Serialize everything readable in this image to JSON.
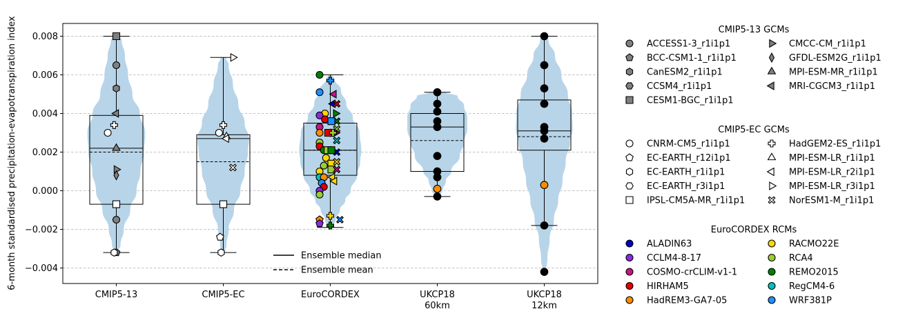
{
  "chart_data": {
    "type": "violin",
    "ylabel": "6-month standardised precipitation-evapotranspiration index",
    "ylim": [
      -0.0048,
      0.0086
    ],
    "yticks": [
      -0.004,
      -0.002,
      0.0,
      0.002,
      0.004,
      0.006,
      0.008
    ],
    "ytick_labels": [
      "−0.004",
      "−0.002",
      "0.000",
      "0.002",
      "0.004",
      "0.006",
      "0.008"
    ],
    "grid": "horizontal dashed",
    "violin_color": "#b8d4e8",
    "groups": [
      {
        "label": "CMIP5-13",
        "label2": "",
        "box": {
          "q1": -0.0007,
          "median": 0.0022,
          "q3": 0.0039,
          "mean": 0.002,
          "whisker_low": -0.0032,
          "whisker_high": 0.008
        },
        "violin": [
          [
            -0.0032,
            0.02
          ],
          [
            -0.0028,
            0.08
          ],
          [
            -0.002,
            0.14
          ],
          [
            -0.001,
            0.26
          ],
          [
            0.0,
            0.38
          ],
          [
            0.001,
            0.45
          ],
          [
            0.002,
            0.52
          ],
          [
            0.003,
            0.54
          ],
          [
            0.004,
            0.44
          ],
          [
            0.005,
            0.3
          ],
          [
            0.006,
            0.22
          ],
          [
            0.007,
            0.16
          ],
          [
            0.0078,
            0.1
          ],
          [
            0.008,
            0.05
          ]
        ]
      },
      {
        "label": "CMIP5-EC",
        "label2": "",
        "box": {
          "q1": -0.0007,
          "median": 0.0027,
          "q3": 0.0029,
          "mean": 0.0015,
          "whisker_low": -0.0032,
          "whisker_high": 0.0069
        },
        "violin": [
          [
            -0.0032,
            0.03
          ],
          [
            -0.0028,
            0.06
          ],
          [
            -0.002,
            0.1
          ],
          [
            -0.001,
            0.2
          ],
          [
            0.0,
            0.32
          ],
          [
            0.001,
            0.4
          ],
          [
            0.002,
            0.46
          ],
          [
            0.0027,
            0.48
          ],
          [
            0.0035,
            0.4
          ],
          [
            0.0045,
            0.28
          ],
          [
            0.0055,
            0.18
          ],
          [
            0.0065,
            0.1
          ],
          [
            0.0069,
            0.05
          ]
        ]
      },
      {
        "label": "EuroCORDEX",
        "label2": "",
        "box": {
          "q1": 0.0008,
          "median": 0.0021,
          "q3": 0.0035,
          "mean": 0.0021,
          "whisker_low": -0.0019,
          "whisker_high": 0.006
        },
        "violin": [
          [
            -0.0019,
            0.03
          ],
          [
            -0.0015,
            0.1
          ],
          [
            -0.001,
            0.18
          ],
          [
            -0.0005,
            0.28
          ],
          [
            0.0,
            0.38
          ],
          [
            0.0008,
            0.5
          ],
          [
            0.0015,
            0.56
          ],
          [
            0.0021,
            0.58
          ],
          [
            0.003,
            0.55
          ],
          [
            0.0038,
            0.42
          ],
          [
            0.0045,
            0.3
          ],
          [
            0.0052,
            0.2
          ],
          [
            0.0058,
            0.08
          ],
          [
            0.006,
            0.03
          ]
        ]
      },
      {
        "label": "UKCP18",
        "label2": "60km",
        "box": {
          "q1": 0.001,
          "median": 0.0033,
          "q3": 0.004,
          "mean": 0.0026,
          "whisker_low": -0.0003,
          "whisker_high": 0.0051
        },
        "violin": [
          [
            -0.0003,
            0.03
          ],
          [
            0.0,
            0.1
          ],
          [
            0.0005,
            0.16
          ],
          [
            0.001,
            0.26
          ],
          [
            0.0018,
            0.42
          ],
          [
            0.0025,
            0.5
          ],
          [
            0.0032,
            0.56
          ],
          [
            0.0038,
            0.56
          ],
          [
            0.0044,
            0.5
          ],
          [
            0.0049,
            0.38
          ],
          [
            0.0051,
            0.15
          ]
        ]
      },
      {
        "label": "UKCP18",
        "label2": "12km",
        "box": {
          "q1": 0.0021,
          "median": 0.0031,
          "q3": 0.0047,
          "mean": 0.0028,
          "whisker_low": -0.0018,
          "whisker_high": 0.008
        },
        "violin": [
          [
            -0.0042,
            0.03
          ],
          [
            -0.0035,
            0.06
          ],
          [
            -0.0025,
            0.1
          ],
          [
            -0.0015,
            0.18
          ],
          [
            -0.0005,
            0.26
          ],
          [
            0.0005,
            0.34
          ],
          [
            0.0015,
            0.4
          ],
          [
            0.0025,
            0.48
          ],
          [
            0.0032,
            0.53
          ],
          [
            0.004,
            0.52
          ],
          [
            0.005,
            0.44
          ],
          [
            0.006,
            0.32
          ],
          [
            0.007,
            0.2
          ],
          [
            0.0078,
            0.08
          ],
          [
            0.008,
            0.04
          ]
        ]
      }
    ],
    "points": [
      {
        "g": 0,
        "dx": 0,
        "y": 0.008,
        "m": "s",
        "c": "#808080"
      },
      {
        "g": 0,
        "dx": 0,
        "y": 0.0065,
        "m": "o",
        "c": "#808080"
      },
      {
        "g": 0,
        "dx": 0,
        "y": 0.0053,
        "m": "h",
        "c": "#808080"
      },
      {
        "g": 0,
        "dx": 0,
        "y": 0.004,
        "m": "<",
        "c": "#808080"
      },
      {
        "g": 0,
        "dx": 0,
        "y": 0.0022,
        "m": "^",
        "c": "#808080"
      },
      {
        "g": 0,
        "dx": 0,
        "y": 0.0011,
        "m": ">",
        "c": "#808080"
      },
      {
        "g": 0,
        "dx": 0,
        "y": 0.0008,
        "m": "d",
        "c": "#808080"
      },
      {
        "g": 0,
        "dx": 0,
        "y": -0.0015,
        "m": "o",
        "c": "#808080"
      },
      {
        "g": 0,
        "dx": 0,
        "y": -0.0032,
        "m": "p",
        "c": "#808080"
      },
      {
        "g": 0,
        "dx": 0,
        "y": -0.0007,
        "m": "s",
        "c": "#ffffff"
      },
      {
        "g": 0,
        "dx": -0.16,
        "y": 0.003,
        "m": "o",
        "c": "#ffffff"
      },
      {
        "g": 0,
        "dx": -0.04,
        "y": 0.0034,
        "m": "P",
        "c": "#ffffff"
      },
      {
        "g": 0,
        "dx": -0.04,
        "y": -0.0032,
        "m": "h",
        "c": "#ffffff"
      },
      {
        "g": 1,
        "dx": -0.08,
        "y": 0.003,
        "m": "o",
        "c": "#ffffff"
      },
      {
        "g": 1,
        "dx": 0,
        "y": 0.0034,
        "m": "P",
        "c": "#ffffff"
      },
      {
        "g": 1,
        "dx": 0.06,
        "y": 0.0028,
        "m": "^",
        "c": "#ffffff"
      },
      {
        "g": 1,
        "dx": 0.06,
        "y": 0.0027,
        "m": "<",
        "c": "#ffffff"
      },
      {
        "g": 1,
        "dx": 0.18,
        "y": 0.0069,
        "m": ">",
        "c": "#ffffff"
      },
      {
        "g": 1,
        "dx": 0.18,
        "y": 0.0012,
        "m": "X",
        "c": "#ffffff"
      },
      {
        "g": 1,
        "dx": 0,
        "y": -0.0007,
        "m": "s",
        "c": "#ffffff"
      },
      {
        "g": 1,
        "dx": -0.06,
        "y": -0.0024,
        "m": "p",
        "c": "#ffffff"
      },
      {
        "g": 1,
        "dx": -0.04,
        "y": -0.0032,
        "m": "h",
        "c": "#ffffff"
      },
      {
        "g": 2,
        "dx": -0.2,
        "y": 0.006,
        "m": "o",
        "c": "#008000"
      },
      {
        "g": 2,
        "dx": -0.2,
        "y": 0.0051,
        "m": "o",
        "c": "#1e90ff"
      },
      {
        "g": 2,
        "dx": 0.0,
        "y": 0.0057,
        "m": "P",
        "c": "#1e90ff"
      },
      {
        "g": 2,
        "dx": 0.07,
        "y": 0.005,
        "m": "<",
        "c": "#c71585"
      },
      {
        "g": 2,
        "dx": 0.05,
        "y": 0.0045,
        "m": "<",
        "c": "#0000c8"
      },
      {
        "g": 2,
        "dx": 0.12,
        "y": 0.0045,
        "m": "X",
        "c": "#e00000"
      },
      {
        "g": 2,
        "dx": 0.1,
        "y": 0.004,
        "m": ">",
        "c": "#008000"
      },
      {
        "g": 2,
        "dx": 0.12,
        "y": 0.0036,
        "m": "X",
        "c": "#008000"
      },
      {
        "g": 2,
        "dx": 0.12,
        "y": 0.0032,
        "m": "X",
        "c": "#9acd32"
      },
      {
        "g": 2,
        "dx": 0.1,
        "y": 0.003,
        "m": ">",
        "c": "#c71585"
      },
      {
        "g": 2,
        "dx": 0.05,
        "y": 0.003,
        "m": ">",
        "c": "#ffd700"
      },
      {
        "g": 2,
        "dx": 0.12,
        "y": 0.0026,
        "m": "X",
        "c": "#00c0c0"
      },
      {
        "g": 2,
        "dx": 0.12,
        "y": 0.002,
        "m": "X",
        "c": "#0000c8"
      },
      {
        "g": 2,
        "dx": -0.1,
        "y": 0.004,
        "m": "o",
        "c": "#ffd700"
      },
      {
        "g": 2,
        "dx": -0.2,
        "y": 0.0039,
        "m": "o",
        "c": "#8a2be2"
      },
      {
        "g": 2,
        "dx": -0.1,
        "y": 0.0037,
        "m": "o",
        "c": "#e00000"
      },
      {
        "g": 2,
        "dx": -0.2,
        "y": 0.0033,
        "m": "o",
        "c": "#c71585"
      },
      {
        "g": 2,
        "dx": -0.2,
        "y": 0.003,
        "m": "o",
        "c": "#ff8c00"
      },
      {
        "g": 2,
        "dx": 0.02,
        "y": 0.0036,
        "m": "s",
        "c": "#1e90ff"
      },
      {
        "g": 2,
        "dx": -0.04,
        "y": 0.003,
        "m": "s",
        "c": "#e00000"
      },
      {
        "g": 2,
        "dx": 0.05,
        "y": 0.003,
        "m": "P",
        "c": "#9acd32"
      },
      {
        "g": 2,
        "dx": -0.2,
        "y": 0.0025,
        "m": "o",
        "c": "#9acd32"
      },
      {
        "g": 2,
        "dx": -0.2,
        "y": 0.0023,
        "m": "o",
        "c": "#e00000"
      },
      {
        "g": 2,
        "dx": -0.12,
        "y": 0.0021,
        "m": "o",
        "c": "#008000"
      },
      {
        "g": 2,
        "dx": -0.05,
        "y": 0.0021,
        "m": "s",
        "c": "#9acd32"
      },
      {
        "g": 2,
        "dx": 0.02,
        "y": 0.0021,
        "m": "s",
        "c": "#008000"
      },
      {
        "g": 2,
        "dx": -0.08,
        "y": 0.0017,
        "m": "o",
        "c": "#ffd700"
      },
      {
        "g": 2,
        "dx": -0.12,
        "y": 0.0013,
        "m": "o",
        "c": "#9acd32"
      },
      {
        "g": 2,
        "dx": 0.02,
        "y": 0.0014,
        "m": "s",
        "c": "#ffd700"
      },
      {
        "g": 2,
        "dx": 0.02,
        "y": 0.0011,
        "m": "s",
        "c": "#9acd32"
      },
      {
        "g": 2,
        "dx": 0.12,
        "y": 0.0015,
        "m": "X",
        "c": "#ffd700"
      },
      {
        "g": 2,
        "dx": 0.12,
        "y": 0.0011,
        "m": "X",
        "c": "#c71585"
      },
      {
        "g": 2,
        "dx": -0.2,
        "y": 0.001,
        "m": "o",
        "c": "#ffd700"
      },
      {
        "g": 2,
        "dx": -0.2,
        "y": 0.0007,
        "m": "o",
        "c": "#00c0c0"
      },
      {
        "g": 2,
        "dx": -0.12,
        "y": 0.0007,
        "m": "o",
        "c": "#ff8c00"
      },
      {
        "g": 2,
        "dx": 0.04,
        "y": 0.0007,
        "m": "<",
        "c": "#ffd700"
      },
      {
        "g": 2,
        "dx": 0.08,
        "y": 0.0005,
        "m": "<",
        "c": "#ffd700"
      },
      {
        "g": 2,
        "dx": -0.16,
        "y": 0.0004,
        "m": "o",
        "c": "#1e90ff"
      },
      {
        "g": 2,
        "dx": -0.12,
        "y": 0.0002,
        "m": "o",
        "c": "#e00000"
      },
      {
        "g": 2,
        "dx": -0.2,
        "y": 0.0,
        "m": "o",
        "c": "#8a2be2"
      },
      {
        "g": 2,
        "dx": -0.2,
        "y": -0.0002,
        "m": "o",
        "c": "#9acd32"
      },
      {
        "g": 2,
        "dx": 0.0,
        "y": -0.0013,
        "m": "P",
        "c": "#ffd700"
      },
      {
        "g": 2,
        "dx": -0.2,
        "y": -0.0015,
        "m": "p",
        "c": "#ff8c00"
      },
      {
        "g": 2,
        "dx": -0.2,
        "y": -0.0017,
        "m": "p",
        "c": "#8a2be2"
      },
      {
        "g": 2,
        "dx": 0.0,
        "y": -0.0018,
        "m": "P",
        "c": "#008000"
      },
      {
        "g": 2,
        "dx": 0.18,
        "y": -0.0015,
        "m": "X",
        "c": "#1e90ff"
      },
      {
        "g": 3,
        "dx": 0,
        "y": 0.0051,
        "m": "o",
        "c": "#000000"
      },
      {
        "g": 3,
        "dx": 0,
        "y": 0.0045,
        "m": "o",
        "c": "#000000"
      },
      {
        "g": 3,
        "dx": 0,
        "y": 0.0041,
        "m": "o",
        "c": "#000000"
      },
      {
        "g": 3,
        "dx": 0,
        "y": 0.0036,
        "m": "o",
        "c": "#000000"
      },
      {
        "g": 3,
        "dx": 0,
        "y": 0.0033,
        "m": "o",
        "c": "#000000"
      },
      {
        "g": 3,
        "dx": 0,
        "y": 0.0018,
        "m": "o",
        "c": "#000000"
      },
      {
        "g": 3,
        "dx": 0,
        "y": 0.001,
        "m": "o",
        "c": "#000000"
      },
      {
        "g": 3,
        "dx": 0,
        "y": 0.0007,
        "m": "o",
        "c": "#000000"
      },
      {
        "g": 3,
        "dx": 0,
        "y": 0.0001,
        "m": "o",
        "c": "#ff8c00"
      },
      {
        "g": 3,
        "dx": 0,
        "y": -0.0003,
        "m": "o",
        "c": "#000000"
      },
      {
        "g": 4,
        "dx": 0,
        "y": 0.008,
        "m": "o",
        "c": "#000000"
      },
      {
        "g": 4,
        "dx": 0,
        "y": 0.0065,
        "m": "o",
        "c": "#000000"
      },
      {
        "g": 4,
        "dx": 0,
        "y": 0.0053,
        "m": "o",
        "c": "#000000"
      },
      {
        "g": 4,
        "dx": 0,
        "y": 0.0045,
        "m": "o",
        "c": "#000000"
      },
      {
        "g": 4,
        "dx": 0,
        "y": 0.0033,
        "m": "o",
        "c": "#000000"
      },
      {
        "g": 4,
        "dx": 0,
        "y": 0.0031,
        "m": "o",
        "c": "#000000"
      },
      {
        "g": 4,
        "dx": 0,
        "y": 0.0027,
        "m": "o",
        "c": "#000000"
      },
      {
        "g": 4,
        "dx": 0,
        "y": 0.0003,
        "m": "o",
        "c": "#ff8c00"
      },
      {
        "g": 4,
        "dx": 0,
        "y": -0.0018,
        "m": "o",
        "c": "#000000"
      },
      {
        "g": 4,
        "dx": 0,
        "y": -0.0042,
        "m": "o",
        "c": "#000000"
      }
    ],
    "inner_legend": [
      {
        "label": "Ensemble median",
        "style": "solid"
      },
      {
        "label": "Ensemble mean",
        "style": "dashed"
      }
    ],
    "legend_sections": [
      {
        "title": "CMIP5-13 GCMs",
        "fill": "#808080",
        "items": [
          {
            "label": "ACCESS1-3_r1i1p1",
            "m": "o"
          },
          {
            "label": "BCC-CSM1-1_r1i1p1",
            "m": "p"
          },
          {
            "label": "CanESM2_r1i1p1",
            "m": "h"
          },
          {
            "label": "CCSM4_r1i1p1",
            "m": "h2"
          },
          {
            "label": "CESM1-BGC_r1i1p1",
            "m": "s"
          },
          {
            "label": "CMCC-CM_r1i1p1",
            "m": ">"
          },
          {
            "label": "GFDL-ESM2G_r1i1p1",
            "m": "d"
          },
          {
            "label": "MPI-ESM-MR_r1i1p1",
            "m": "^"
          },
          {
            "label": "MRI-CGCM3_r1i1p1",
            "m": "<"
          }
        ]
      },
      {
        "title": "CMIP5-EC GCMs",
        "fill": "#ffffff",
        "items": [
          {
            "label": "CNRM-CM5_r1i1p1",
            "m": "o"
          },
          {
            "label": "EC-EARTH_r12i1p1",
            "m": "p"
          },
          {
            "label": "EC-EARTH_r1i1p1",
            "m": "h"
          },
          {
            "label": "EC-EARTH_r3i1p1",
            "m": "h2"
          },
          {
            "label": "IPSL-CM5A-MR_r1i1p1",
            "m": "s"
          },
          {
            "label": "HadGEM2-ES_r1i1p1",
            "m": "P"
          },
          {
            "label": "MPI-ESM-LR_r1i1p1",
            "m": "^"
          },
          {
            "label": "MPI-ESM-LR_r2i1p1",
            "m": "<"
          },
          {
            "label": "MPI-ESM-LR_r3i1p1",
            "m": ">"
          },
          {
            "label": "NorESM1-M_r1i1p1",
            "m": "X"
          }
        ]
      },
      {
        "title": "EuroCORDEX RCMs",
        "fill": "",
        "items": [
          {
            "label": "ALADIN63",
            "m": "o",
            "c": "#0000c8"
          },
          {
            "label": "CCLM4-8-17",
            "m": "o",
            "c": "#8a2be2"
          },
          {
            "label": "COSMO-crCLIM-v1-1",
            "m": "o",
            "c": "#c71585"
          },
          {
            "label": "HIRHAM5",
            "m": "o",
            "c": "#e00000"
          },
          {
            "label": "HadREM3-GA7-05",
            "m": "o",
            "c": "#ff8c00"
          },
          {
            "label": "RACMO22E",
            "m": "o",
            "c": "#ffd700"
          },
          {
            "label": "RCA4",
            "m": "o",
            "c": "#9acd32"
          },
          {
            "label": "REMO2015",
            "m": "o",
            "c": "#008000"
          },
          {
            "label": "RegCM4-6",
            "m": "o",
            "c": "#00c0c0"
          },
          {
            "label": "WRF381P",
            "m": "o",
            "c": "#1e90ff"
          }
        ]
      }
    ]
  }
}
